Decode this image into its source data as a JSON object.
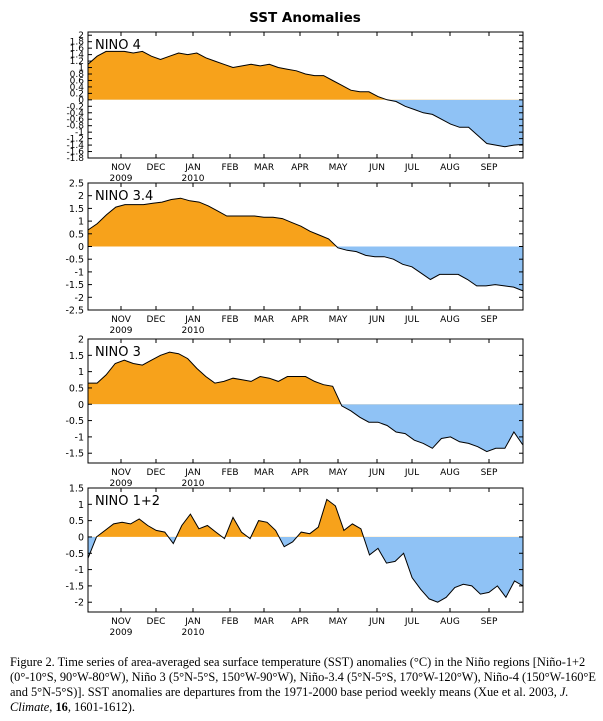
{
  "title": "SST Anomalies",
  "colors": {
    "positive": "#f7a21b",
    "negative": "#8fc2f5",
    "line": "#000000",
    "frame": "#000000"
  },
  "months": [
    "NOV",
    "DEC",
    "JAN",
    "FEB",
    "MAR",
    "APR",
    "MAY",
    "JUN",
    "JUL",
    "AUG",
    "SEP"
  ],
  "years": [
    "2009",
    "2010"
  ],
  "caption": {
    "p1": "Figure 2. Time series of area-averaged sea surface temperature (SST) anomalies (°C) in the Niño regions [Niño-1+2 (0°-10°S, 90°W-80°W), Niño 3 (5°N-5°S, 150°W-90°W), Niño-3.4 (5°N-5°S, 170°W-120°W), Niño-4 (150°W-160°E and 5°N-5°S)]. SST anomalies are departures from the 1971-2000 base period weekly means (Xue et al. 2003, ",
    "journal": "J. Climate",
    "volume": "16",
    "p2": ", 1601-1612)."
  },
  "chart_data": [
    {
      "type": "area",
      "label": "NINO 4",
      "ylim": [
        -1.8,
        2.1
      ],
      "yticks": [
        "2",
        "1.8",
        "1.6",
        "1.4",
        "1.2",
        "1",
        "0.8",
        "0.6",
        "0.4",
        "0.2",
        "0",
        "-0.2",
        "-0.4",
        "-0.6",
        "-0.8",
        "-1",
        "-1.2",
        "-1.4",
        "-1.6",
        "-1.8"
      ],
      "ytick_values": [
        2,
        1.8,
        1.6,
        1.4,
        1.2,
        1,
        0.8,
        0.6,
        0.4,
        0.2,
        0,
        -0.2,
        -0.4,
        -0.6,
        -0.8,
        -1,
        -1.2,
        -1.4,
        -1.6,
        -1.8
      ],
      "xticks": [
        "NOV",
        "DEC",
        "JAN",
        "FEB",
        "MAR",
        "APR",
        "MAY",
        "JUN",
        "JUL",
        "AUG",
        "SEP"
      ],
      "values": [
        1.1,
        1.35,
        1.5,
        1.5,
        1.5,
        1.45,
        1.5,
        1.35,
        1.25,
        1.35,
        1.45,
        1.4,
        1.45,
        1.3,
        1.2,
        1.1,
        1.0,
        1.05,
        1.1,
        1.05,
        1.1,
        1.0,
        0.95,
        0.9,
        0.8,
        0.75,
        0.75,
        0.6,
        0.45,
        0.3,
        0.25,
        0.25,
        0.1,
        0.0,
        -0.05,
        -0.2,
        -0.3,
        -0.4,
        -0.45,
        -0.6,
        -0.75,
        -0.85,
        -0.85,
        -1.1,
        -1.35,
        -1.4,
        -1.45,
        -1.4,
        -1.38
      ]
    },
    {
      "type": "area",
      "label": "NINO 3.4",
      "ylim": [
        -2.5,
        2.5
      ],
      "yticks": [
        "2.5",
        "2",
        "1.5",
        "1",
        "0.5",
        "0",
        "-0.5",
        "-1",
        "-1.5",
        "-2",
        "-2.5"
      ],
      "ytick_values": [
        2.5,
        2,
        1.5,
        1,
        0.5,
        0,
        -0.5,
        -1,
        -1.5,
        -2,
        -2.5
      ],
      "xticks": [
        "NOV",
        "DEC",
        "JAN",
        "FEB",
        "MAR",
        "APR",
        "MAY",
        "JUN",
        "JUL",
        "AUG",
        "SEP"
      ],
      "values": [
        0.65,
        0.9,
        1.25,
        1.55,
        1.65,
        1.65,
        1.65,
        1.7,
        1.75,
        1.85,
        1.9,
        1.8,
        1.75,
        1.6,
        1.4,
        1.2,
        1.2,
        1.2,
        1.2,
        1.15,
        1.15,
        1.1,
        0.95,
        0.8,
        0.6,
        0.45,
        0.3,
        -0.05,
        -0.15,
        -0.2,
        -0.35,
        -0.4,
        -0.4,
        -0.5,
        -0.7,
        -0.8,
        -1.05,
        -1.3,
        -1.1,
        -1.1,
        -1.1,
        -1.3,
        -1.55,
        -1.55,
        -1.5,
        -1.55,
        -1.6,
        -1.75
      ]
    },
    {
      "type": "area",
      "label": "NINO 3",
      "ylim": [
        -1.8,
        2.0
      ],
      "yticks": [
        "2",
        "1.5",
        "1",
        "0.5",
        "0",
        "-0.5",
        "-1",
        "-1.5"
      ],
      "ytick_values": [
        2,
        1.5,
        1,
        0.5,
        0,
        -0.5,
        -1,
        -1.5
      ],
      "xticks": [
        "NOV",
        "DEC",
        "JAN",
        "FEB",
        "MAR",
        "APR",
        "MAY",
        "JUN",
        "JUL",
        "AUG",
        "SEP"
      ],
      "values": [
        0.65,
        0.65,
        0.9,
        1.25,
        1.35,
        1.25,
        1.2,
        1.35,
        1.5,
        1.6,
        1.55,
        1.4,
        1.1,
        0.85,
        0.65,
        0.7,
        0.8,
        0.75,
        0.7,
        0.85,
        0.8,
        0.7,
        0.85,
        0.85,
        0.85,
        0.7,
        0.6,
        0.55,
        -0.05,
        -0.2,
        -0.4,
        -0.55,
        -0.55,
        -0.65,
        -0.85,
        -0.9,
        -1.1,
        -1.2,
        -1.35,
        -1.05,
        -1.0,
        -1.15,
        -1.2,
        -1.3,
        -1.45,
        -1.35,
        -1.35,
        -0.85,
        -1.25
      ]
    },
    {
      "type": "area",
      "label": "NINO 1+2",
      "ylim": [
        -2.3,
        1.5
      ],
      "yticks": [
        "1.5",
        "1",
        "0.5",
        "0",
        "-0.5",
        "-1",
        "-1.5",
        "-2"
      ],
      "ytick_values": [
        1.5,
        1,
        0.5,
        0,
        -0.5,
        -1,
        -1.5,
        -2
      ],
      "xticks": [
        "NOV",
        "DEC",
        "JAN",
        "FEB",
        "MAR",
        "APR",
        "MAY",
        "JUN",
        "JUL",
        "AUG",
        "SEP"
      ],
      "values": [
        -0.65,
        0.0,
        0.2,
        0.4,
        0.45,
        0.4,
        0.55,
        0.35,
        0.2,
        0.15,
        -0.2,
        0.35,
        0.7,
        0.25,
        0.35,
        0.15,
        -0.05,
        0.6,
        0.15,
        -0.05,
        0.5,
        0.45,
        0.2,
        -0.3,
        -0.15,
        0.15,
        0.1,
        0.3,
        1.15,
        0.95,
        0.2,
        0.4,
        0.25,
        -0.55,
        -0.35,
        -0.8,
        -0.75,
        -0.5,
        -1.25,
        -1.6,
        -1.9,
        -2.0,
        -1.85,
        -1.55,
        -1.45,
        -1.5,
        -1.75,
        -1.7,
        -1.5,
        -1.85,
        -1.35,
        -1.5
      ]
    }
  ]
}
